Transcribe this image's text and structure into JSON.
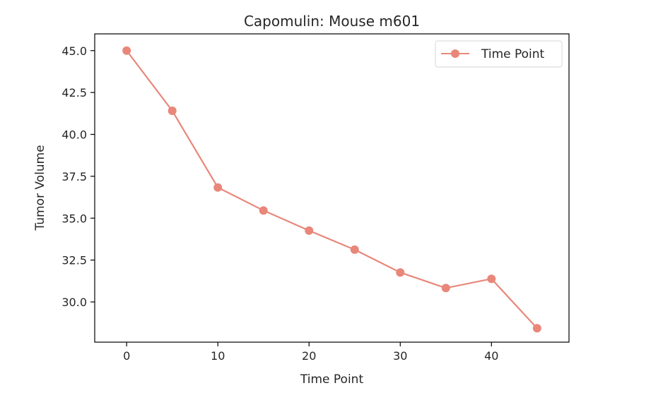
{
  "chart_data": {
    "type": "line",
    "title": "Capomulin: Mouse m601",
    "xlabel": "Time Point",
    "ylabel": "Tumor Volume",
    "xlim": [
      -3.5,
      48.5
    ],
    "ylim": [
      27.6,
      46.0
    ],
    "xticks": [
      0,
      10,
      20,
      30,
      40
    ],
    "xtick_labels": [
      "0",
      "10",
      "20",
      "30",
      "40"
    ],
    "yticks": [
      30.0,
      32.5,
      35.0,
      37.5,
      40.0,
      42.5,
      45.0
    ],
    "ytick_labels": [
      "30.0",
      "32.5",
      "35.0",
      "37.5",
      "40.0",
      "42.5",
      "45.0"
    ],
    "grid": false,
    "legend_position": "upper right",
    "series": [
      {
        "name": "Time Point",
        "color": "#e8877a",
        "marker": "circle",
        "x": [
          0,
          5,
          10,
          15,
          20,
          25,
          30,
          35,
          40,
          45
        ],
        "y": [
          45.0,
          41.41,
          36.83,
          35.46,
          34.26,
          33.12,
          31.76,
          30.83,
          31.38,
          28.43
        ]
      }
    ]
  }
}
